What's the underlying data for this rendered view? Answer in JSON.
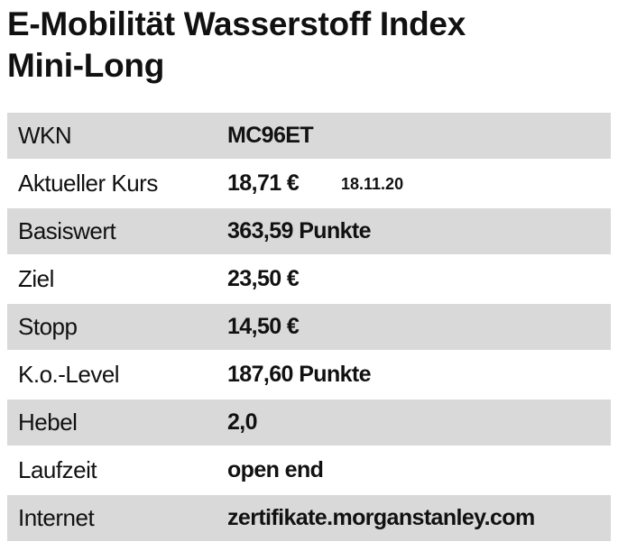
{
  "title": [
    "E-Mobilität Wasserstoff Index",
    "Mini-Long"
  ],
  "table": {
    "rows": [
      [
        "WKN",
        "MC96ET"
      ],
      [
        "Aktueller Kurs",
        "18,71 €",
        "18.11.20"
      ],
      [
        "Basiswert",
        "363,59 Punkte"
      ],
      [
        "Ziel",
        "23,50 €"
      ],
      [
        "Stopp",
        "14,50 €"
      ],
      [
        "K.o.-Level",
        "187,60 Punkte"
      ],
      [
        "Hebel",
        "2,0"
      ],
      [
        "Laufzeit",
        "open end"
      ],
      [
        "Internet",
        "zertifikate.morganstanley.com"
      ]
    ]
  }
}
